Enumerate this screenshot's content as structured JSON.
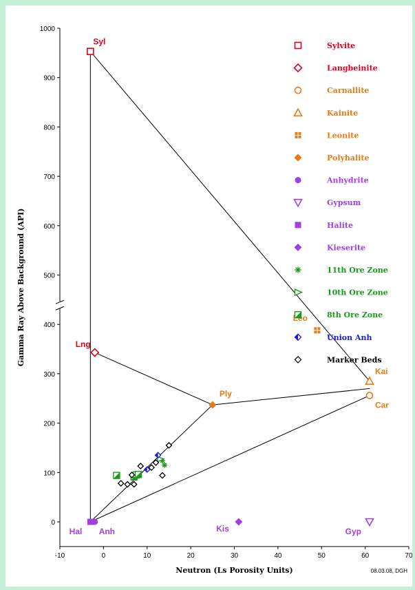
{
  "chart_data": {
    "type": "scatter",
    "title": "",
    "xlabel": "Neutron (Ls Porosity Units)",
    "ylabel": "Gamma Ray Above Background (API)",
    "xlim": [
      -10,
      70
    ],
    "ylim": [
      -50,
      1000
    ],
    "xticks": [
      -10,
      0,
      10,
      20,
      30,
      40,
      50,
      60,
      70
    ],
    "yticks": [
      0,
      100,
      200,
      300,
      400,
      500,
      600,
      700,
      800,
      900,
      1000
    ],
    "y_axis_break": "between 400 and 500",
    "grid": false,
    "legend_position": "top-right",
    "credit": "08.03.08, DGH",
    "series": [
      {
        "name": "Sylvite",
        "marker": "square-open",
        "color": "#e0001c",
        "points": [
          [
            -3,
            953
          ]
        ]
      },
      {
        "name": "Langbeinite",
        "marker": "diamond-open",
        "color": "#e0001c",
        "points": [
          [
            -2,
            343
          ]
        ]
      },
      {
        "name": "Carnallite",
        "marker": "circle-open",
        "color": "#e87a14",
        "points": [
          [
            61,
            256
          ]
        ]
      },
      {
        "name": "Kainite",
        "marker": "triangle-open",
        "color": "#e87a14",
        "points": [
          [
            61,
            285
          ]
        ]
      },
      {
        "name": "Leonite",
        "marker": "square-cross",
        "color": "#e87a14",
        "points": [
          [
            49,
            388
          ]
        ]
      },
      {
        "name": "Polyhalite",
        "marker": "diamond-filled",
        "color": "#e87a14",
        "points": [
          [
            25,
            237
          ]
        ]
      },
      {
        "name": "Anhydrite",
        "marker": "circle-filled",
        "color": "#a040e0",
        "points": [
          [
            -2,
            0
          ]
        ]
      },
      {
        "name": "Gypsum",
        "marker": "triangle-down-open",
        "color": "#a040e0",
        "points": [
          [
            61,
            0
          ]
        ]
      },
      {
        "name": "Halite",
        "marker": "square-filled",
        "color": "#a040e0",
        "points": [
          [
            -3,
            0
          ]
        ]
      },
      {
        "name": "Kieserite",
        "marker": "diamond-filled",
        "color": "#a040e0",
        "points": [
          [
            31,
            0
          ]
        ]
      },
      {
        "name": "11th Ore Zone",
        "marker": "asterisk",
        "color": "#1a9a1a",
        "points": [
          [
            14,
            115
          ],
          [
            13.5,
            124
          ]
        ]
      },
      {
        "name": "10th Ore Zone",
        "marker": "triangle-right-open",
        "color": "#1a9a1a",
        "points": [
          [
            13,
            127
          ]
        ]
      },
      {
        "name": "8th Ore Zone",
        "marker": "square-half",
        "color": "#1a9a1a",
        "points": [
          [
            3,
            94
          ],
          [
            7,
            91
          ],
          [
            7.5,
            95
          ],
          [
            8,
            96
          ]
        ]
      },
      {
        "name": "Union Anh",
        "marker": "diamond-half",
        "color": "#1a1ae0",
        "points": [
          [
            10,
            106
          ],
          [
            12.5,
            135
          ]
        ]
      },
      {
        "name": "Marker Beds",
        "marker": "diamond-small",
        "color": "#000000",
        "points": [
          [
            4,
            78
          ],
          [
            5.5,
            76
          ],
          [
            7,
            76
          ],
          [
            6.5,
            95
          ],
          [
            8.5,
            113
          ],
          [
            11,
            110
          ],
          [
            12,
            120
          ],
          [
            13.5,
            94
          ],
          [
            15,
            155
          ]
        ]
      }
    ],
    "mineral_labels": [
      {
        "text": "Syl",
        "color": "#e0001c",
        "x": -3,
        "y": 953
      },
      {
        "text": "Lng",
        "color": "#e0001c",
        "x": -2,
        "y": 343
      },
      {
        "text": "Leo",
        "color": "#e87a14",
        "x": 49,
        "y": 388
      },
      {
        "text": "Kai",
        "color": "#e87a14",
        "x": 61,
        "y": 285
      },
      {
        "text": "Ply",
        "color": "#e87a14",
        "x": 25,
        "y": 237
      },
      {
        "text": "Car",
        "color": "#e87a14",
        "x": 61,
        "y": 256
      },
      {
        "text": "Hal",
        "color": "#a040e0",
        "x": -3,
        "y": 0
      },
      {
        "text": "Anh",
        "color": "#a040e0",
        "x": -2,
        "y": 0
      },
      {
        "text": "Kis",
        "color": "#a040e0",
        "x": 31,
        "y": 0
      },
      {
        "text": "Gyp",
        "color": "#a040e0",
        "x": 61,
        "y": 0
      }
    ],
    "tie_lines": [
      [
        [
          -3,
          953
        ],
        [
          -3,
          0
        ]
      ],
      [
        [
          -3,
          953
        ],
        [
          61,
          285
        ]
      ],
      [
        [
          -2,
          343
        ],
        [
          25,
          237
        ]
      ],
      [
        [
          -3,
          0
        ],
        [
          25,
          237
        ]
      ],
      [
        [
          25,
          237
        ],
        [
          61,
          270
        ]
      ],
      [
        [
          -3,
          0
        ],
        [
          61,
          256
        ]
      ]
    ]
  }
}
